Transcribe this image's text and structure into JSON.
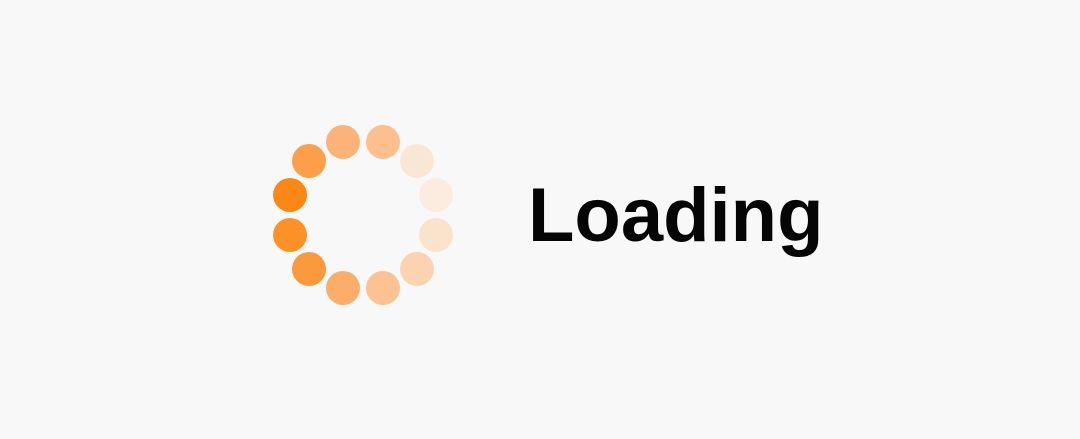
{
  "loading": {
    "label": "Loading"
  },
  "spinner": {
    "icon": "loading-spinner-icon",
    "dot_colors": [
      "#fb8716",
      "#fc9128",
      "#fb9a3d",
      "#fcad6a",
      "#fcc291",
      "#fcd3b0",
      "#fbe2cb",
      "#fcece0",
      "#f9e7d6",
      "#fcbf8d",
      "#fcb37a",
      "#fc9f4b"
    ]
  }
}
